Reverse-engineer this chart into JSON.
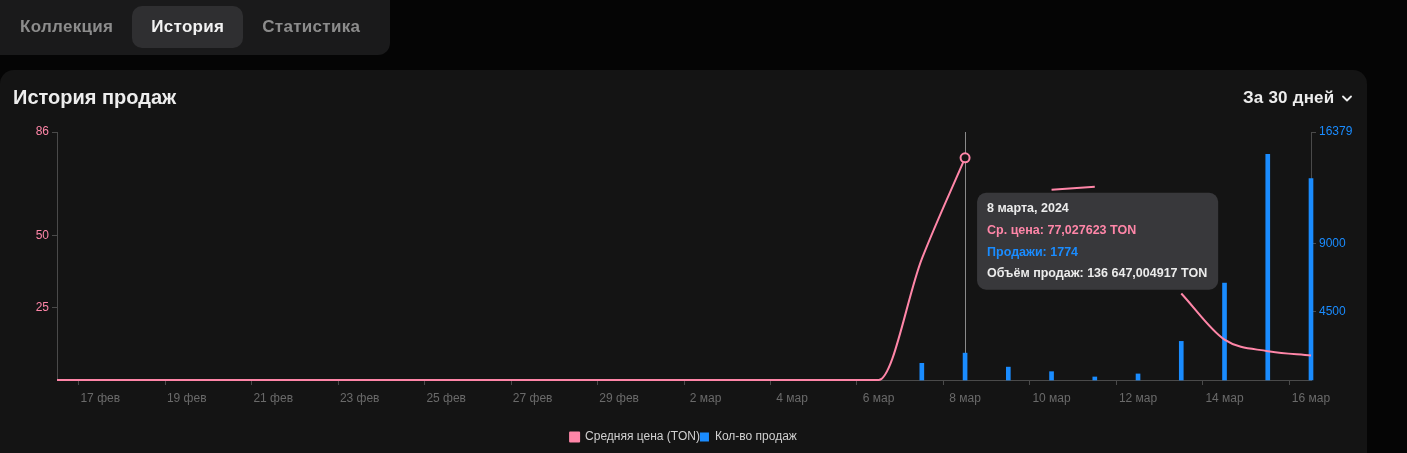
{
  "chart_data": {
    "type": "line",
    "title": "История продаж",
    "categories": [
      null,
      "17 фев",
      null,
      "19 фев",
      null,
      "21 фев",
      null,
      "23 фев",
      null,
      "25 фев",
      null,
      "27 фев",
      null,
      "29 фев",
      null,
      "2 мар",
      null,
      "4 мар",
      null,
      "6 мар",
      null,
      "8 мар",
      null,
      "10 мар",
      null,
      "12 мар",
      null,
      "14 мар",
      null,
      "16 мар"
    ],
    "series": [
      {
        "name": "Средняя цена (TON)",
        "color": "#ff86a8",
        "values": [
          0,
          0,
          0,
          0,
          0,
          0,
          0,
          0,
          0,
          0,
          0,
          0,
          0,
          0,
          0,
          0,
          0,
          0,
          0,
          0,
          42,
          77.027623,
          null,
          66,
          67,
          null,
          30,
          14,
          10,
          8.5
        ]
      },
      {
        "name": "Кол-во продаж",
        "type": "bar",
        "axis": "y2",
        "color": "#1a8cff",
        "values": [
          null,
          null,
          null,
          null,
          null,
          null,
          null,
          null,
          null,
          null,
          null,
          null,
          null,
          null,
          null,
          null,
          null,
          null,
          null,
          null,
          1100,
          1774,
          850,
          550,
          200,
          400,
          2550,
          6400,
          14900,
          13300
        ]
      }
    ],
    "ylim": [
      0,
      86
    ],
    "yticks": [
      25,
      50,
      86
    ],
    "y2lim": [
      0,
      16379
    ],
    "y2ticks": [
      4500,
      9000,
      16379
    ],
    "grid": false,
    "legend": "bottom",
    "marker": "none",
    "ref_lines": [
      {
        "axis": "x",
        "value": "8 мар",
        "color": "#8a8a8a"
      }
    ],
    "annotations": [
      "Коллекция",
      "История",
      "Статистика",
      "За 30 дней",
      "8 марта, 2024",
      "Ср. цена: 77,027623 TON",
      "Продажи: 1774",
      "Объём продаж: 136 647,004917 TON"
    ]
  }
}
